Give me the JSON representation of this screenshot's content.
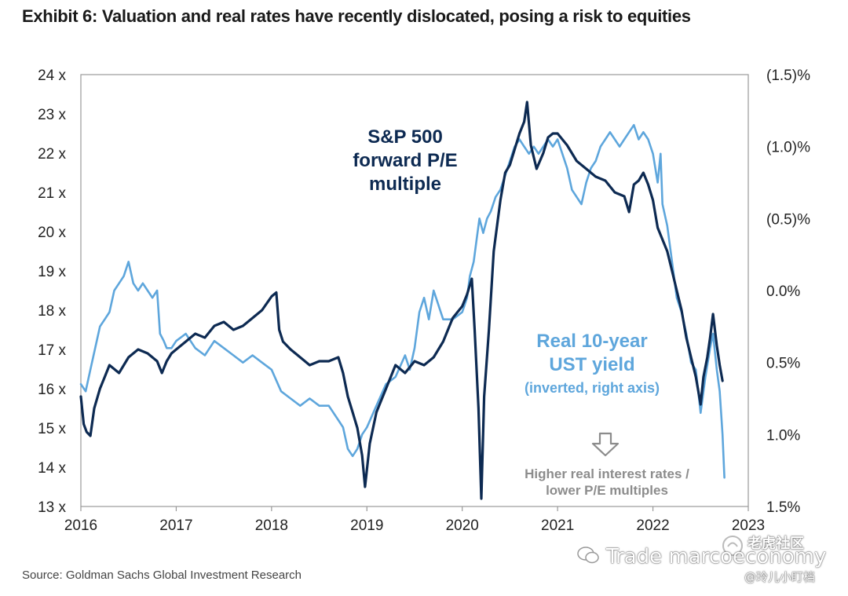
{
  "title": "Exhibit 6: Valuation and real rates have recently dislocated, posing a risk to equities",
  "source": "Source: Goldman Sachs Global Investment Research",
  "watermark": {
    "main": "Trade marcoeconomy",
    "top": "老虎社区",
    "bottom": "@玲儿小盯档"
  },
  "chart_data": {
    "type": "line",
    "x_ticks": [
      "2016",
      "2017",
      "2018",
      "2019",
      "2020",
      "2021",
      "2022",
      "2023"
    ],
    "xlim": [
      2016,
      2023
    ],
    "y_left": {
      "ticks": [
        "24 x",
        "23 x",
        "22 x",
        "21 x",
        "20 x",
        "19 x",
        "18 x",
        "17 x",
        "16 x",
        "15 x",
        "14 x",
        "13 x"
      ],
      "ylim": [
        13,
        24
      ]
    },
    "y_right": {
      "ticks": [
        "(1.5)%",
        "(1.0)%",
        "(0.5)%",
        "0.0%",
        "0.5%",
        "1.0%",
        "1.5%"
      ],
      "ylim": [
        -1.5,
        1.5
      ],
      "inverted": true
    },
    "grid": false,
    "annotations": {
      "pe_label": [
        "S&P 500",
        "forward P/E",
        "multiple"
      ],
      "yield_label": [
        "Real 10-year",
        "UST yield"
      ],
      "yield_sublabel": "(inverted, right axis)",
      "note": [
        "Higher real interest rates /",
        "lower P/E multiples"
      ],
      "arrow_icon": "down-arrow-icon"
    },
    "colors": {
      "pe": "#0d2a52",
      "yield": "#5ea6dc",
      "note": "#8c8c8c",
      "frame": "#999999"
    },
    "series": [
      {
        "axis": "left",
        "points": [
          [
            2016.0,
            15.8
          ],
          [
            2016.03,
            15.1
          ],
          [
            2016.06,
            14.9
          ],
          [
            2016.1,
            14.8
          ],
          [
            2016.14,
            15.5
          ],
          [
            2016.2,
            16.0
          ],
          [
            2016.25,
            16.3
          ],
          [
            2016.3,
            16.6
          ],
          [
            2016.4,
            16.4
          ],
          [
            2016.5,
            16.8
          ],
          [
            2016.6,
            17.0
          ],
          [
            2016.7,
            16.9
          ],
          [
            2016.8,
            16.7
          ],
          [
            2016.85,
            16.4
          ],
          [
            2016.9,
            16.7
          ],
          [
            2016.95,
            16.9
          ],
          [
            2017.0,
            17.0
          ],
          [
            2017.1,
            17.2
          ],
          [
            2017.2,
            17.4
          ],
          [
            2017.3,
            17.3
          ],
          [
            2017.4,
            17.6
          ],
          [
            2017.5,
            17.7
          ],
          [
            2017.6,
            17.5
          ],
          [
            2017.7,
            17.6
          ],
          [
            2017.8,
            17.8
          ],
          [
            2017.9,
            18.0
          ],
          [
            2018.0,
            18.35
          ],
          [
            2018.05,
            18.45
          ],
          [
            2018.08,
            17.5
          ],
          [
            2018.12,
            17.2
          ],
          [
            2018.2,
            17.0
          ],
          [
            2018.3,
            16.8
          ],
          [
            2018.4,
            16.6
          ],
          [
            2018.5,
            16.7
          ],
          [
            2018.6,
            16.7
          ],
          [
            2018.7,
            16.8
          ],
          [
            2018.75,
            16.4
          ],
          [
            2018.8,
            15.8
          ],
          [
            2018.85,
            15.4
          ],
          [
            2018.9,
            15.0
          ],
          [
            2018.95,
            14.3
          ],
          [
            2018.98,
            13.5
          ],
          [
            2019.03,
            14.6
          ],
          [
            2019.1,
            15.4
          ],
          [
            2019.2,
            16.0
          ],
          [
            2019.3,
            16.6
          ],
          [
            2019.4,
            16.4
          ],
          [
            2019.5,
            16.7
          ],
          [
            2019.6,
            16.6
          ],
          [
            2019.7,
            16.8
          ],
          [
            2019.8,
            17.2
          ],
          [
            2019.9,
            17.8
          ],
          [
            2020.0,
            18.1
          ],
          [
            2020.05,
            18.4
          ],
          [
            2020.1,
            18.8
          ],
          [
            2020.13,
            17.5
          ],
          [
            2020.17,
            15.5
          ],
          [
            2020.2,
            13.2
          ],
          [
            2020.23,
            15.8
          ],
          [
            2020.28,
            17.5
          ],
          [
            2020.33,
            19.5
          ],
          [
            2020.4,
            20.8
          ],
          [
            2020.45,
            21.5
          ],
          [
            2020.5,
            21.7
          ],
          [
            2020.55,
            22.1
          ],
          [
            2020.6,
            22.5
          ],
          [
            2020.65,
            22.8
          ],
          [
            2020.68,
            23.3
          ],
          [
            2020.72,
            22.2
          ],
          [
            2020.78,
            21.6
          ],
          [
            2020.85,
            22.0
          ],
          [
            2020.9,
            22.4
          ],
          [
            2020.95,
            22.5
          ],
          [
            2021.0,
            22.5
          ],
          [
            2021.1,
            22.2
          ],
          [
            2021.2,
            21.8
          ],
          [
            2021.3,
            21.6
          ],
          [
            2021.4,
            21.4
          ],
          [
            2021.5,
            21.3
          ],
          [
            2021.6,
            21.0
          ],
          [
            2021.7,
            20.9
          ],
          [
            2021.75,
            20.5
          ],
          [
            2021.8,
            21.2
          ],
          [
            2021.85,
            21.3
          ],
          [
            2021.9,
            21.5
          ],
          [
            2021.95,
            21.2
          ],
          [
            2022.0,
            20.8
          ],
          [
            2022.05,
            20.1
          ],
          [
            2022.1,
            19.8
          ],
          [
            2022.15,
            19.5
          ],
          [
            2022.2,
            19.0
          ],
          [
            2022.25,
            18.5
          ],
          [
            2022.3,
            18.0
          ],
          [
            2022.35,
            17.3
          ],
          [
            2022.4,
            16.8
          ],
          [
            2022.45,
            16.3
          ],
          [
            2022.5,
            15.6
          ],
          [
            2022.53,
            16.3
          ],
          [
            2022.57,
            16.8
          ],
          [
            2022.6,
            17.3
          ],
          [
            2022.63,
            17.9
          ],
          [
            2022.67,
            17.1
          ],
          [
            2022.7,
            16.6
          ],
          [
            2022.73,
            16.2
          ]
        ]
      },
      {
        "axis": "right",
        "points": [
          [
            2016.0,
            0.65
          ],
          [
            2016.05,
            0.7
          ],
          [
            2016.1,
            0.55
          ],
          [
            2016.15,
            0.4
          ],
          [
            2016.2,
            0.25
          ],
          [
            2016.25,
            0.2
          ],
          [
            2016.3,
            0.15
          ],
          [
            2016.35,
            0.0
          ],
          [
            2016.4,
            -0.05
          ],
          [
            2016.45,
            -0.1
          ],
          [
            2016.5,
            -0.2
          ],
          [
            2016.55,
            -0.05
          ],
          [
            2016.6,
            0.0
          ],
          [
            2016.65,
            -0.05
          ],
          [
            2016.7,
            0.0
          ],
          [
            2016.75,
            0.05
          ],
          [
            2016.8,
            0.0
          ],
          [
            2016.83,
            0.3
          ],
          [
            2016.87,
            0.35
          ],
          [
            2016.9,
            0.4
          ],
          [
            2016.95,
            0.4
          ],
          [
            2017.0,
            0.35
          ],
          [
            2017.1,
            0.3
          ],
          [
            2017.2,
            0.4
          ],
          [
            2017.3,
            0.45
          ],
          [
            2017.4,
            0.35
          ],
          [
            2017.5,
            0.4
          ],
          [
            2017.6,
            0.45
          ],
          [
            2017.7,
            0.5
          ],
          [
            2017.8,
            0.45
          ],
          [
            2017.9,
            0.5
          ],
          [
            2018.0,
            0.55
          ],
          [
            2018.1,
            0.7
          ],
          [
            2018.2,
            0.75
          ],
          [
            2018.3,
            0.8
          ],
          [
            2018.4,
            0.75
          ],
          [
            2018.5,
            0.8
          ],
          [
            2018.6,
            0.8
          ],
          [
            2018.7,
            0.9
          ],
          [
            2018.75,
            0.95
          ],
          [
            2018.8,
            1.1
          ],
          [
            2018.85,
            1.15
          ],
          [
            2018.9,
            1.1
          ],
          [
            2018.95,
            1.0
          ],
          [
            2019.0,
            0.95
          ],
          [
            2019.1,
            0.8
          ],
          [
            2019.2,
            0.65
          ],
          [
            2019.3,
            0.6
          ],
          [
            2019.4,
            0.45
          ],
          [
            2019.45,
            0.55
          ],
          [
            2019.5,
            0.4
          ],
          [
            2019.55,
            0.15
          ],
          [
            2019.6,
            0.05
          ],
          [
            2019.65,
            0.2
          ],
          [
            2019.7,
            0.0
          ],
          [
            2019.8,
            0.2
          ],
          [
            2019.9,
            0.2
          ],
          [
            2020.0,
            0.15
          ],
          [
            2020.05,
            0.05
          ],
          [
            2020.08,
            -0.1
          ],
          [
            2020.12,
            -0.2
          ],
          [
            2020.15,
            -0.35
          ],
          [
            2020.18,
            -0.5
          ],
          [
            2020.22,
            -0.4
          ],
          [
            2020.26,
            -0.5
          ],
          [
            2020.3,
            -0.55
          ],
          [
            2020.35,
            -0.65
          ],
          [
            2020.4,
            -0.7
          ],
          [
            2020.45,
            -0.8
          ],
          [
            2020.5,
            -0.9
          ],
          [
            2020.55,
            -1.0
          ],
          [
            2020.6,
            -1.05
          ],
          [
            2020.65,
            -1.0
          ],
          [
            2020.7,
            -0.95
          ],
          [
            2020.75,
            -1.0
          ],
          [
            2020.8,
            -0.95
          ],
          [
            2020.85,
            -1.0
          ],
          [
            2020.9,
            -1.05
          ],
          [
            2020.95,
            -1.0
          ],
          [
            2021.0,
            -1.05
          ],
          [
            2021.05,
            -0.95
          ],
          [
            2021.1,
            -0.85
          ],
          [
            2021.15,
            -0.7
          ],
          [
            2021.2,
            -0.65
          ],
          [
            2021.25,
            -0.6
          ],
          [
            2021.3,
            -0.75
          ],
          [
            2021.35,
            -0.85
          ],
          [
            2021.4,
            -0.9
          ],
          [
            2021.45,
            -1.0
          ],
          [
            2021.5,
            -1.05
          ],
          [
            2021.55,
            -1.1
          ],
          [
            2021.6,
            -1.05
          ],
          [
            2021.65,
            -1.0
          ],
          [
            2021.7,
            -1.05
          ],
          [
            2021.75,
            -1.1
          ],
          [
            2021.8,
            -1.15
          ],
          [
            2021.85,
            -1.05
          ],
          [
            2021.9,
            -1.1
          ],
          [
            2021.95,
            -1.05
          ],
          [
            2022.0,
            -0.95
          ],
          [
            2022.05,
            -0.75
          ],
          [
            2022.08,
            -0.95
          ],
          [
            2022.1,
            -0.6
          ],
          [
            2022.15,
            -0.45
          ],
          [
            2022.2,
            -0.2
          ],
          [
            2022.25,
            0.05
          ],
          [
            2022.3,
            0.15
          ],
          [
            2022.35,
            0.3
          ],
          [
            2022.4,
            0.5
          ],
          [
            2022.45,
            0.55
          ],
          [
            2022.5,
            0.85
          ],
          [
            2022.55,
            0.6
          ],
          [
            2022.6,
            0.4
          ],
          [
            2022.63,
            0.3
          ],
          [
            2022.67,
            0.55
          ],
          [
            2022.7,
            0.7
          ],
          [
            2022.73,
            1.0
          ],
          [
            2022.75,
            1.3
          ]
        ]
      }
    ]
  }
}
